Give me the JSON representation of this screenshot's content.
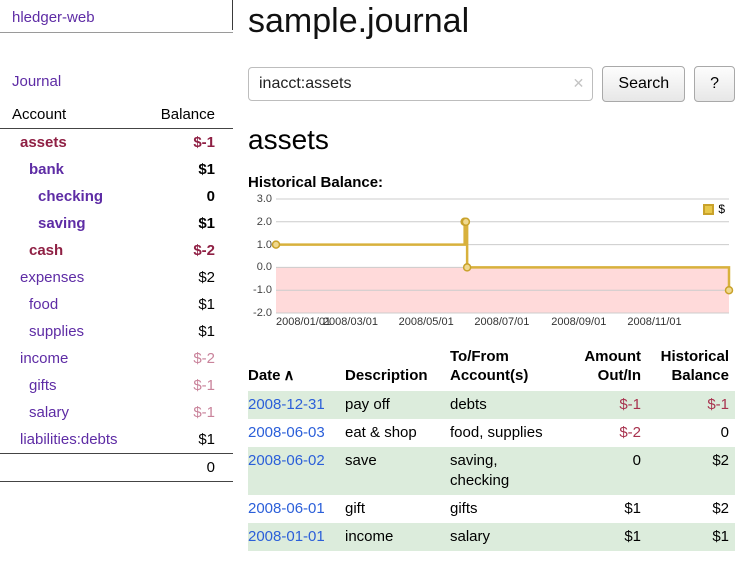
{
  "app": {
    "brand": "hledger-web"
  },
  "nav": {
    "journal": "Journal"
  },
  "sidebar": {
    "header": {
      "account": "Account",
      "balance": "Balance"
    },
    "accounts": [
      {
        "name": "assets",
        "balance": "$-1",
        "depth": 0,
        "bold": true,
        "neg": true,
        "name_neg": true
      },
      {
        "name": "bank",
        "balance": "$1",
        "depth": 1,
        "bold": true,
        "neg": false,
        "name_neg": false
      },
      {
        "name": "checking",
        "balance": "0",
        "depth": 2,
        "bold": true,
        "neg": false,
        "name_neg": false
      },
      {
        "name": "saving",
        "balance": "$1",
        "depth": 2,
        "bold": true,
        "neg": false,
        "name_neg": false
      },
      {
        "name": "cash",
        "balance": "$-2",
        "depth": 1,
        "bold": true,
        "neg": true,
        "name_neg": true
      },
      {
        "name": "expenses",
        "balance": "$2",
        "depth": 0,
        "bold": false,
        "neg": false,
        "name_neg": false
      },
      {
        "name": "food",
        "balance": "$1",
        "depth": 1,
        "bold": false,
        "neg": false,
        "name_neg": false
      },
      {
        "name": "supplies",
        "balance": "$1",
        "depth": 1,
        "bold": false,
        "neg": false,
        "name_neg": false
      },
      {
        "name": "income",
        "balance": "$-2",
        "depth": 0,
        "bold": false,
        "neg": true,
        "name_neg": false
      },
      {
        "name": "gifts",
        "balance": "$-1",
        "depth": 1,
        "bold": false,
        "neg": true,
        "name_neg": false
      },
      {
        "name": "salary",
        "balance": "$-1",
        "depth": 1,
        "bold": false,
        "neg": true,
        "name_neg": false
      },
      {
        "name": "liabilities:debts",
        "balance": "$1",
        "depth": 0,
        "bold": false,
        "neg": false,
        "name_neg": false
      }
    ],
    "total": "0"
  },
  "main": {
    "title": "sample.journal",
    "search": {
      "value": "inacct:assets",
      "clear_icon": "✕",
      "button_label": "Search",
      "help_label": "?"
    },
    "account_heading": "assets",
    "section_label": "Historical Balance:"
  },
  "chart_data": {
    "type": "line",
    "title": "Historical Balance",
    "step": "after",
    "x": [
      "2008-01-01",
      "2008-06-01",
      "2008-06-02",
      "2008-06-03",
      "2008-12-31"
    ],
    "series": [
      {
        "name": "$",
        "values": [
          1,
          2,
          2,
          0,
          -1
        ]
      }
    ],
    "ylim": [
      -2,
      3
    ],
    "y_tick_labels": [
      "3.0",
      "2.0",
      "1.0",
      "0.0",
      "-1.0",
      "-2.0"
    ],
    "x_tick_labels": [
      "2008/01/01",
      "2008/03/01",
      "2008/05/01",
      "2008/07/01",
      "2008/09/01",
      "2008/11/01"
    ],
    "legend": {
      "label": "$",
      "position": "top-right"
    },
    "grid": true,
    "line_color": "#d8b13c",
    "marker_fill": "#f0d98f",
    "marker_stroke": "#c9a22b",
    "grid_color": "#cccccc",
    "negative_region_color": "#ffdada"
  },
  "register": {
    "sort_indicator": "∧",
    "columns": [
      {
        "label": "Date"
      },
      {
        "label": "Description"
      },
      {
        "label": "To/From\nAccount(s)"
      },
      {
        "label": "Amount\nOut/In"
      },
      {
        "label": "Historical\nBalance"
      }
    ],
    "rows": [
      {
        "date": "2008-12-31",
        "description": "pay off",
        "accounts": "debts",
        "amount": "$-1",
        "amount_neg": true,
        "balance": "$-1",
        "balance_neg": true
      },
      {
        "date": "2008-06-03",
        "description": "eat & shop",
        "accounts": "food, supplies",
        "amount": "$-2",
        "amount_neg": true,
        "balance": "0",
        "balance_neg": false
      },
      {
        "date": "2008-06-02",
        "description": "save",
        "accounts": "saving,\nchecking",
        "amount": "0",
        "amount_neg": false,
        "balance": "$2",
        "balance_neg": false
      },
      {
        "date": "2008-06-01",
        "description": "gift",
        "accounts": "gifts",
        "amount": "$1",
        "amount_neg": false,
        "balance": "$2",
        "balance_neg": false
      },
      {
        "date": "2008-01-01",
        "description": "income",
        "accounts": "salary",
        "amount": "$1",
        "amount_neg": false,
        "balance": "$1",
        "balance_neg": false
      }
    ]
  }
}
